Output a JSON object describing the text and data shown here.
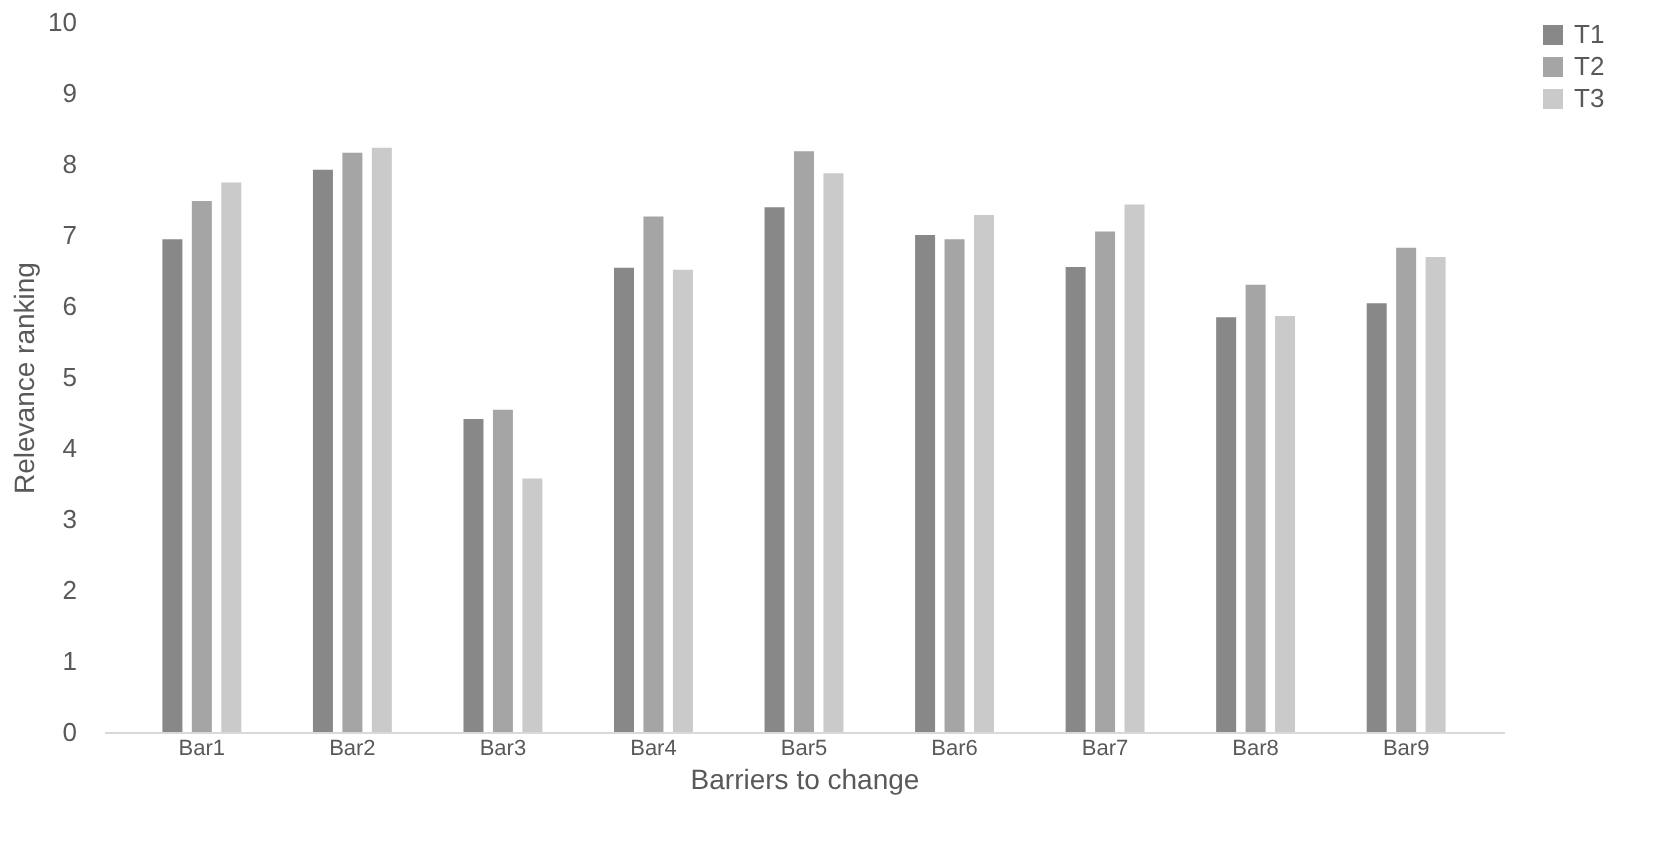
{
  "chart_data": {
    "type": "bar",
    "xlabel": "Barriers to change",
    "ylabel": "Relevance ranking",
    "categories": [
      "Bar1",
      "Bar2",
      "Bar3",
      "Bar4",
      "Bar5",
      "Bar6",
      "Bar7",
      "Bar8",
      "Bar9"
    ],
    "series": [
      {
        "name": "T1",
        "color": "#888888",
        "values": [
          6.94,
          7.92,
          4.41,
          6.54,
          7.39,
          7.0,
          6.55,
          5.84,
          6.04
        ]
      },
      {
        "name": "T2",
        "color": "#a5a5a5",
        "values": [
          7.48,
          8.16,
          4.54,
          7.26,
          8.18,
          6.94,
          7.05,
          6.3,
          6.82
        ]
      },
      {
        "name": "T3",
        "color": "#cacaca",
        "values": [
          7.74,
          8.23,
          3.57,
          6.51,
          7.87,
          7.28,
          7.43,
          5.86,
          6.69
        ]
      }
    ],
    "ylim": [
      0,
      10
    ],
    "yticks": [
      0,
      1,
      2,
      3,
      4,
      5,
      6,
      7,
      8,
      9,
      10
    ],
    "grid": false,
    "legend": "right"
  }
}
